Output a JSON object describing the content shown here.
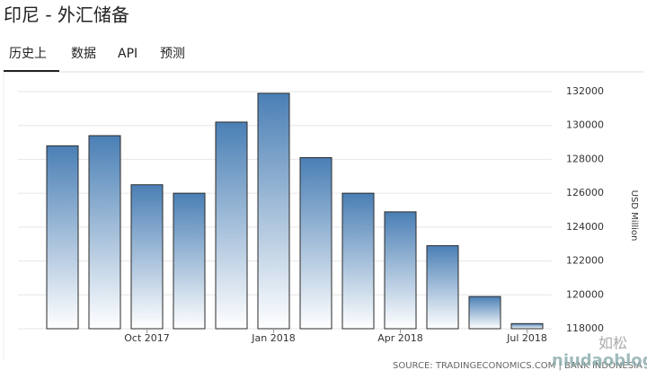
{
  "header": {
    "title": "印尼 - 外汇储备",
    "tabs": [
      "历史上",
      "数据",
      "API",
      "预测"
    ]
  },
  "chart_data": {
    "type": "bar",
    "categories": [
      null,
      null,
      "Oct 2017",
      null,
      null,
      "Jan 2018",
      null,
      null,
      "Apr 2018",
      null,
      null,
      "Jul 2018"
    ],
    "values": [
      128800,
      129400,
      126500,
      126000,
      130200,
      131900,
      128100,
      126000,
      124900,
      122900,
      119900,
      118300
    ],
    "color": "#4a7fb5",
    "ylim": [
      118000,
      132000
    ],
    "yticks": [
      118000,
      120000,
      122000,
      124000,
      126000,
      128000,
      130000,
      132000
    ],
    "y_axis_label": "USD Million",
    "grid": true,
    "source": "SOURCE: TRADINGECONOMICS.COM | BANK INDONESIA",
    "watermark": [
      "如松",
      "niudaoblog.com"
    ]
  }
}
